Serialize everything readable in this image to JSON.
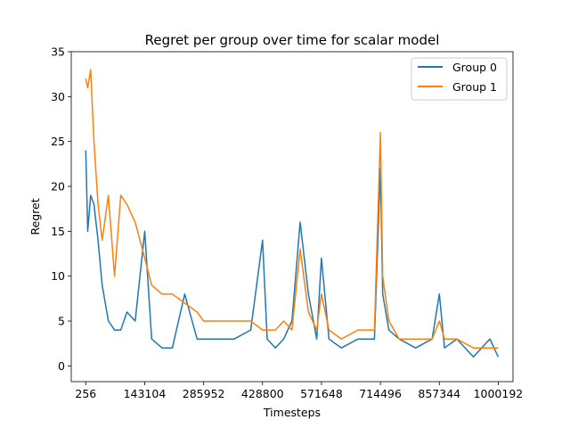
{
  "chart_data": {
    "type": "line",
    "title": "Regret per group over time for scalar model",
    "xlabel": "Timesteps",
    "ylabel": "Regret",
    "xlim": [
      -35000,
      1036000
    ],
    "ylim": [
      -1.75,
      35
    ],
    "x_ticks": [
      256,
      143104,
      285952,
      428800,
      571648,
      714496,
      857344,
      1000192
    ],
    "x_tick_labels": [
      "256",
      "143104",
      "285952",
      "428800",
      "571648",
      "714496",
      "857344",
      "1000192"
    ],
    "y_ticks": [
      0,
      5,
      10,
      15,
      20,
      25,
      30,
      35
    ],
    "y_tick_labels": [
      "0",
      "5",
      "10",
      "15",
      "20",
      "25",
      "30",
      "35"
    ],
    "legend": {
      "position": "top-right",
      "entries": [
        "Group 0",
        "Group 1"
      ]
    },
    "series": [
      {
        "name": "Group 0",
        "color": "#1f77b4",
        "x": [
          256,
          5000,
          12000,
          20000,
          30000,
          40000,
          55000,
          70000,
          85000,
          100000,
          120000,
          143104,
          160000,
          185000,
          210000,
          240000,
          270000,
          285952,
          320000,
          360000,
          400000,
          428800,
          440000,
          460000,
          480000,
          500000,
          520000,
          540000,
          560000,
          571648,
          590000,
          620000,
          660000,
          700000,
          714496,
          720000,
          735000,
          760000,
          800000,
          840000,
          857344,
          870000,
          900000,
          940000,
          980000,
          1000192
        ],
        "values": [
          24,
          15,
          19,
          18,
          14,
          9,
          5,
          4,
          4,
          6,
          5,
          15,
          3,
          2,
          2,
          8,
          3,
          3,
          3,
          3,
          4,
          14,
          3,
          2,
          3,
          5,
          16,
          8,
          3,
          12,
          3,
          2,
          3,
          3,
          22,
          8,
          4,
          3,
          2,
          3,
          8,
          2,
          3,
          1,
          3,
          1
        ]
      },
      {
        "name": "Group 1",
        "color": "#ff7f0e",
        "x": [
          256,
          5000,
          12000,
          20000,
          30000,
          40000,
          55000,
          70000,
          85000,
          100000,
          120000,
          143104,
          160000,
          185000,
          210000,
          240000,
          270000,
          285952,
          320000,
          360000,
          400000,
          428800,
          440000,
          460000,
          480000,
          500000,
          520000,
          540000,
          560000,
          571648,
          590000,
          620000,
          660000,
          700000,
          714496,
          720000,
          735000,
          760000,
          800000,
          840000,
          857344,
          870000,
          900000,
          940000,
          980000,
          1000192
        ],
        "values": [
          32,
          31,
          33,
          25,
          18,
          14,
          19,
          10,
          19,
          18,
          16,
          12,
          9,
          8,
          8,
          7,
          6,
          5,
          5,
          5,
          5,
          4,
          4,
          4,
          5,
          4,
          13,
          6,
          4,
          8,
          4,
          3,
          4,
          4,
          26,
          10,
          5,
          3,
          3,
          3,
          5,
          3,
          3,
          2,
          2,
          2
        ]
      }
    ]
  }
}
